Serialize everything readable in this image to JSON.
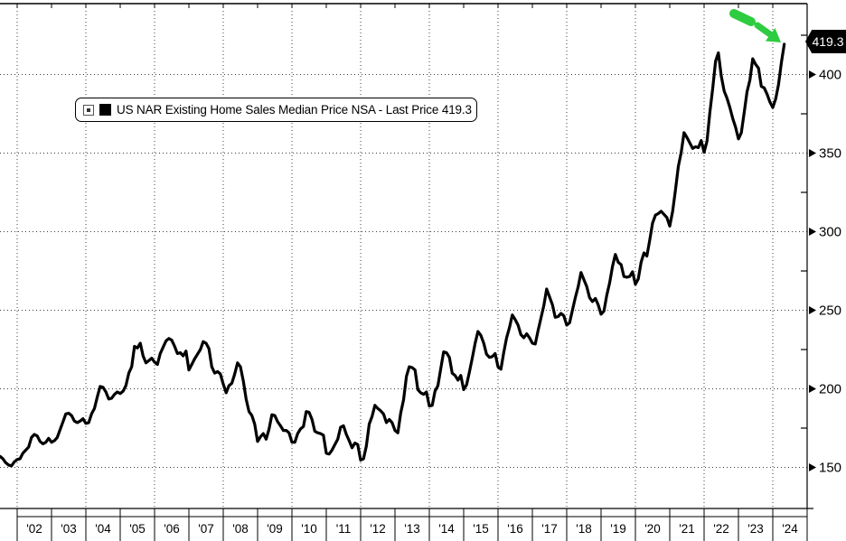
{
  "legend": {
    "label": "US NAR Existing Home Sales Median Price NSA - Last Price 419.3",
    "swatch_color": "#000000"
  },
  "price_tag": {
    "value": "419.3",
    "bg": "#000000",
    "fg": "#ffffff"
  },
  "chart_data": {
    "type": "line",
    "title": "US NAR Existing Home Sales Median Price NSA",
    "legend_label": "US NAR Existing Home Sales Median Price NSA - Last Price 419.3",
    "last_price": 419.3,
    "units": "USD thousands",
    "frequency": "monthly",
    "x_start": "2001-07",
    "x_end": "2024-05",
    "x_tick_labels": [
      "'02",
      "'03",
      "'04",
      "'05",
      "'06",
      "'07",
      "'08",
      "'09",
      "'10",
      "'11",
      "'12",
      "'13",
      "'14",
      "'15",
      "'16",
      "'17",
      "'18",
      "'19",
      "'20",
      "'21",
      "'22",
      "'23",
      "'24"
    ],
    "y_ticks": [
      150,
      200,
      250,
      300,
      350,
      400
    ],
    "y_minor_ticks": [
      175,
      225,
      275,
      325,
      375,
      425
    ],
    "ylim": [
      124,
      446
    ],
    "grid": "dotted",
    "legend_position": "top-left",
    "line_color": "#000000",
    "grid_color": "#3c3c3c",
    "annotation": {
      "type": "arrow",
      "color": "#2ecc40",
      "direction": "down-right",
      "target": "last point"
    },
    "values": [
      157,
      155.5,
      153,
      151.5,
      151,
      153.5,
      155,
      155.5,
      159,
      161,
      163,
      169,
      171,
      170,
      166.5,
      165,
      166,
      168.5,
      166,
      167,
      169,
      174,
      179,
      184,
      184.5,
      183,
      179.5,
      178.5,
      179.5,
      181,
      178,
      178.5,
      184,
      187.5,
      195,
      201.5,
      201,
      198,
      193.5,
      194,
      196.5,
      198,
      197,
      198.5,
      202,
      210,
      214,
      227,
      226,
      229,
      221,
      216.5,
      218,
      219.5,
      217,
      215.5,
      222.5,
      226.5,
      230.5,
      232,
      231,
      227,
      222.5,
      223,
      221,
      224,
      212,
      215.5,
      219,
      222,
      225,
      230,
      229,
      225.5,
      214,
      210,
      211,
      209.5,
      203,
      197.5,
      202,
      203.5,
      209.5,
      216.5,
      214,
      205,
      193.5,
      185.5,
      183,
      177.5,
      166.5,
      169.5,
      171.5,
      168,
      174.5,
      183.5,
      183,
      179,
      176.5,
      173.5,
      173.5,
      172,
      166,
      166,
      171.5,
      174.5,
      176,
      185.5,
      185,
      180.5,
      173,
      172,
      171.5,
      170.5,
      159,
      158.5,
      161,
      164.5,
      168,
      175.5,
      176.5,
      171,
      167,
      162.5,
      165.5,
      164.5,
      154.6,
      155.5,
      163.5,
      177.5,
      182.5,
      189.5,
      187.5,
      186,
      184,
      178.5,
      180.5,
      178.5,
      173.5,
      172,
      184.5,
      193,
      208,
      214,
      213.5,
      212,
      199.5,
      197.5,
      196.5,
      198,
      189,
      189.5,
      198.5,
      202,
      213,
      223.5,
      223,
      220,
      210,
      208.5,
      205.5,
      208.5,
      199.5,
      202.5,
      210.5,
      219.5,
      229,
      236.5,
      234,
      229,
      222,
      220,
      220.5,
      222.5,
      214,
      212.5,
      223,
      232.5,
      239,
      247,
      244,
      240.5,
      234.5,
      232.5,
      235,
      232.5,
      229,
      228.5,
      237,
      245,
      253,
      263.5,
      258.5,
      253.5,
      245.5,
      246,
      248,
      246.5,
      240.5,
      242,
      250,
      258,
      265,
      274,
      269.5,
      265,
      258,
      255.5,
      257.5,
      253.5,
      247.5,
      249.5,
      259.5,
      267.5,
      278,
      285.5,
      280.5,
      279,
      271.5,
      271,
      271.5,
      274.5,
      266.5,
      270,
      280.5,
      286.5,
      284.5,
      294.5,
      305.5,
      310.5,
      311.5,
      313,
      311,
      309,
      303.5,
      313,
      326.5,
      341.5,
      350.5,
      363,
      360,
      356.5,
      353,
      354,
      353.5,
      358,
      350.5,
      357.5,
      375.5,
      391,
      408.5,
      413.8,
      399,
      389.5,
      385,
      379,
      372,
      366.5,
      359,
      363,
      375.5,
      389,
      396.5,
      410,
      406.5,
      404,
      392.5,
      391.5,
      387.5,
      382.5,
      379,
      384.5,
      393.5,
      407.5,
      419.3
    ]
  }
}
